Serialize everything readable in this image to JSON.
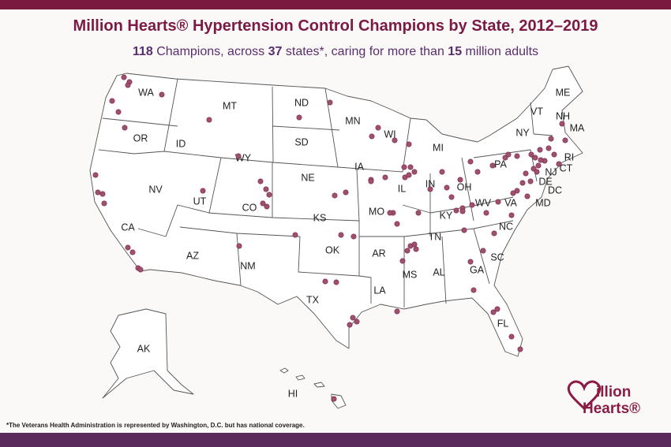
{
  "title": "Million Hearts® Hypertension Control Champions by State, 2012–2019",
  "subtitle": {
    "parts": [
      {
        "text": "118",
        "bold": true
      },
      {
        "text": " Champions, across ",
        "bold": false
      },
      {
        "text": "37",
        "bold": true
      },
      {
        "text": " states*, caring for more than ",
        "bold": false
      },
      {
        "text": "15",
        "bold": true
      },
      {
        "text": " million adults",
        "bold": false
      }
    ]
  },
  "states": [
    "WA",
    "OR",
    "CA",
    "NV",
    "ID",
    "MT",
    "WY",
    "UT",
    "CO",
    "AZ",
    "NM",
    "ND",
    "SD",
    "NE",
    "KS",
    "OK",
    "TX",
    "MN",
    "IA",
    "MO",
    "AR",
    "LA",
    "WI",
    "IL",
    "MI",
    "IN",
    "OH",
    "KY",
    "TN",
    "MS",
    "AL",
    "GA",
    "FL",
    "SC",
    "NC",
    "VA",
    "WV",
    "PA",
    "NY",
    "VT",
    "NH",
    "ME",
    "MA",
    "RI",
    "CT",
    "NJ",
    "DE",
    "DC",
    "MD",
    "AK",
    "HI"
  ],
  "footnote": "*The Veterans Health Administration is represented by Washington, D.C. but has national coverage.",
  "logo": {
    "line1": "illion",
    "line2": "Hearts®"
  }
}
